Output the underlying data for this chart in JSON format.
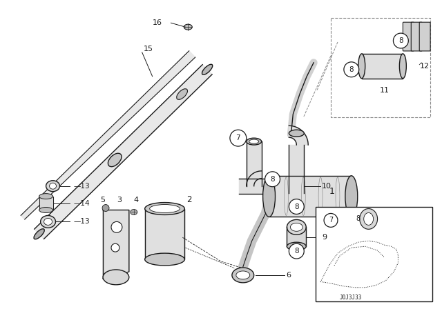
{
  "bg_color": "#ffffff",
  "line_color": "#1a1a1a",
  "fig_width": 6.4,
  "fig_height": 4.48,
  "dpi": 100
}
